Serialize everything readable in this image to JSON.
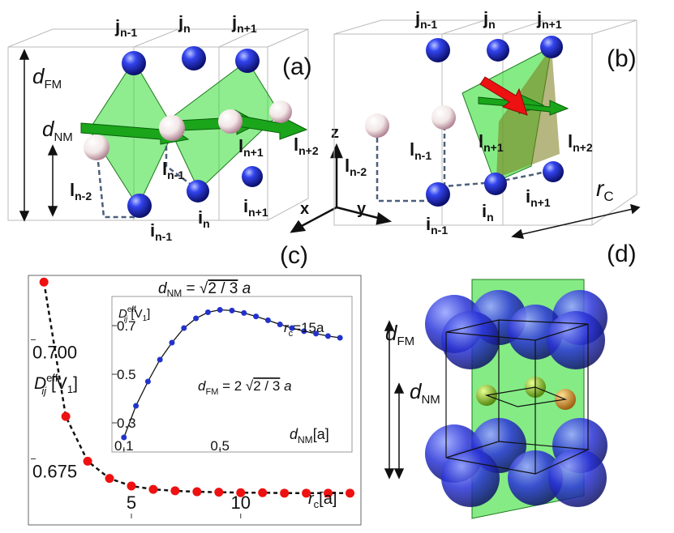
{
  "panels": {
    "a": {
      "label": "(a)",
      "d_fm": "d",
      "d_fm_sub": "FM",
      "d_nm": "d",
      "d_nm_sub": "NM",
      "j": [
        {
          "b": "j",
          "s": "n-1"
        },
        {
          "b": "j",
          "s": "n"
        },
        {
          "b": "j",
          "s": "n+1"
        }
      ],
      "i": [
        {
          "b": "i",
          "s": "n-1"
        },
        {
          "b": "i",
          "s": "n"
        },
        {
          "b": "i",
          "s": "n+1"
        }
      ],
      "l": [
        {
          "b": "l",
          "s": "n-2"
        },
        {
          "b": "l",
          "s": "n-1"
        },
        {
          "b": "l",
          "s": "n+1"
        },
        {
          "b": "l",
          "s": "n+2"
        }
      ]
    },
    "b": {
      "label": "(b)",
      "j": [
        {
          "b": "j",
          "s": "n-1"
        },
        {
          "b": "j",
          "s": "n"
        },
        {
          "b": "j",
          "s": "n+1"
        }
      ],
      "i": [
        {
          "b": "i",
          "s": "n-1"
        },
        {
          "b": "i",
          "s": "n"
        },
        {
          "b": "i",
          "s": "n+1"
        }
      ],
      "l": [
        {
          "b": "l",
          "s": "n-2"
        },
        {
          "b": "l",
          "s": "n-1"
        },
        {
          "b": "l",
          "s": "n+1"
        },
        {
          "b": "l",
          "s": "n+2"
        }
      ],
      "rc": "r",
      "rc_sub": "C"
    },
    "axes": {
      "z": "z",
      "x": "x",
      "y": "y"
    },
    "c": {
      "label": "(c)"
    },
    "d": {
      "label": "(d)",
      "d_fm": "d",
      "d_fm_sub": "FM",
      "d_nm": "d",
      "d_nm_sub": "NM"
    }
  },
  "colors": {
    "blue": "#2233cc",
    "green": "#33dd33",
    "red": "#ee1111",
    "grey_dash": "#4a5f7a"
  },
  "chart_data": [
    {
      "type": "scatter",
      "title": "d_NM = √(2/3) a",
      "xlabel": "r_c [a]",
      "ylabel": "D_ij^eff [V_1]",
      "xticks": [
        5,
        10
      ],
      "yticks": [
        0.675,
        0.7
      ],
      "xlim": [
        0.4,
        15.5
      ],
      "ylim": [
        0.6625,
        0.7135
      ],
      "series": [
        {
          "x": [
            1,
            2,
            3,
            4,
            5,
            6,
            7,
            8,
            9,
            10,
            11,
            12,
            13,
            14,
            15
          ],
          "y": [
            0.7121,
            0.6839,
            0.6745,
            0.6709,
            0.6693,
            0.6686,
            0.6683,
            0.6681,
            0.668,
            0.6679,
            0.6679,
            0.6678,
            0.6678,
            0.6678,
            0.6678
          ],
          "color": "#ee1111",
          "line": "dashed"
        }
      ]
    },
    {
      "type": "line",
      "xlabel": "d_NM [a]",
      "ylabel": "D_ij^eff [V_1]",
      "annotations": [
        "r_c = 15a",
        "d_FM = 2 √(2/3) a"
      ],
      "xticks": [
        0.1,
        0.5
      ],
      "yticks": [
        0.3,
        0.5,
        0.7
      ],
      "xlim": [
        0.05,
        1.05
      ],
      "ylim": [
        0.18,
        0.82
      ],
      "series": [
        {
          "x": [
            0.1,
            0.15,
            0.2,
            0.25,
            0.3,
            0.35,
            0.4,
            0.45,
            0.5,
            0.55,
            0.6,
            0.65,
            0.7,
            0.75,
            0.8,
            0.85,
            0.9,
            0.95,
            1.0
          ],
          "y": [
            0.24,
            0.37,
            0.47,
            0.56,
            0.63,
            0.69,
            0.73,
            0.755,
            0.765,
            0.762,
            0.752,
            0.738,
            0.722,
            0.705,
            0.69,
            0.677,
            0.667,
            0.657,
            0.65
          ],
          "color": "#2233cc",
          "line": "solid"
        }
      ]
    }
  ]
}
